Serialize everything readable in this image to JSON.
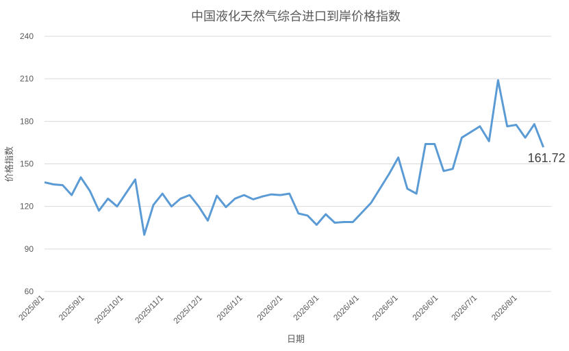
{
  "chart_data": {
    "type": "line",
    "title": "中国液化天然气综合进口到岸价格指数",
    "x_label": "日期",
    "y_label": "价格指数",
    "x": [
      "2025/8/1",
      "2025/8/8",
      "2025/8/15",
      "2025/8/22",
      "2025/8/29",
      "2025/9/5",
      "2025/9/12",
      "2025/9/19",
      "2025/9/26",
      "2025/10/10",
      "2025/10/17",
      "2025/10/24",
      "2025/10/31",
      "2025/11/7",
      "2025/11/14",
      "2025/11/21",
      "2025/11/28",
      "2025/12/5",
      "2025/12/12",
      "2025/12/19",
      "2025/12/26",
      "2026/1/2",
      "2026/1/9",
      "2026/1/16",
      "2026/1/23",
      "2026/1/30",
      "2026/2/6",
      "2026/2/13",
      "2026/2/20",
      "2026/2/27",
      "2026/3/6",
      "2026/3/13",
      "2026/3/20",
      "2026/3/27",
      "2026/4/10",
      "2026/4/24",
      "2026/5/1",
      "2026/5/8",
      "2026/5/15",
      "2026/5/22",
      "2026/5/29",
      "2026/6/5",
      "2026/6/12",
      "2026/6/19",
      "2026/7/3",
      "2026/7/10",
      "2026/7/17",
      "2026/7/24",
      "2026/7/31",
      "2026/8/7",
      "2026/8/14",
      "2026/8/21"
    ],
    "values": [
      137,
      135.5,
      135,
      128,
      140.5,
      131,
      117,
      125.5,
      120,
      139,
      100,
      121,
      129,
      120,
      125.5,
      128,
      120,
      110,
      127.5,
      119.5,
      125.5,
      128,
      125,
      127,
      128.5,
      128,
      129,
      115,
      113.5,
      107,
      114.5,
      108.5,
      109,
      109,
      122.5,
      143,
      154.5,
      132.5,
      129,
      164,
      164,
      145,
      146.5,
      168.5,
      176.5,
      166,
      209,
      176.5,
      177.5,
      168.5,
      178,
      161.72
    ],
    "color": "#5b9bd5",
    "data_labels": "last",
    "xlim": [
      "2025/8/1",
      "2026/8/27"
    ],
    "xticks": [
      "2025/8/1",
      "2025/9/1",
      "2025/10/1",
      "2025/11/1",
      "2025/12/1",
      "2026/1/1",
      "2026/2/1",
      "2026/3/1",
      "2026/4/1",
      "2026/5/1",
      "2026/6/1",
      "2026/7/1",
      "2026/8/1"
    ],
    "ylim": [
      60,
      240
    ],
    "yticks": [
      60,
      90,
      120,
      150,
      180,
      210,
      240
    ],
    "grid": true
  }
}
